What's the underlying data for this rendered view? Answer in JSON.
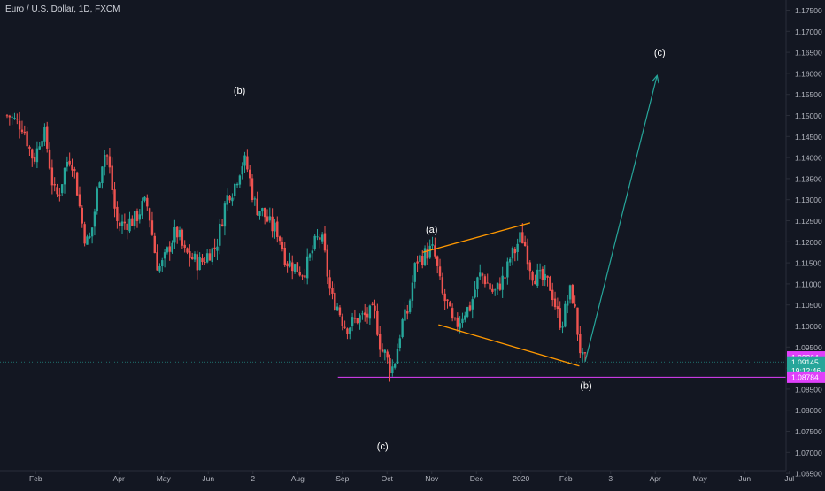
{
  "title": "Euro / U.S. Dollar, 1D, FXCM",
  "chart_data": {
    "type": "candlestick",
    "y_ticks": [
      "1.17500",
      "1.17000",
      "1.16500",
      "1.16000",
      "1.15500",
      "1.15000",
      "1.14500",
      "1.14000",
      "1.13500",
      "1.13000",
      "1.12500",
      "1.12000",
      "1.11500",
      "1.11000",
      "1.10500",
      "1.10000",
      "1.09500",
      "1.09000",
      "1.08500",
      "1.08000",
      "1.07500",
      "1.07000",
      "1.06500"
    ],
    "ylim": [
      1.062,
      1.178
    ],
    "x_ticks": [
      {
        "label": "Feb",
        "t": 0.6
      },
      {
        "label": "Apr",
        "t": 2.5
      },
      {
        "label": "May",
        "t": 3.5
      },
      {
        "label": "Jun",
        "t": 4.5
      },
      {
        "label": "2",
        "t": 5.5
      },
      {
        "label": "Aug",
        "t": 6.5
      },
      {
        "label": "Sep",
        "t": 7.5
      },
      {
        "label": "Oct",
        "t": 8.5
      },
      {
        "label": "Nov",
        "t": 9.5
      },
      {
        "label": "Dec",
        "t": 10.5
      },
      {
        "label": "2020",
        "t": 11.5
      },
      {
        "label": "Feb",
        "t": 12.5
      },
      {
        "label": "3",
        "t": 13.5
      },
      {
        "label": "Apr",
        "t": 14.5
      },
      {
        "label": "May",
        "t": 15.5
      },
      {
        "label": "Jun",
        "t": 16.5
      },
      {
        "label": "Jul",
        "t": 17.5
      }
    ],
    "xlim": [
      0,
      17.5
    ],
    "path_key_points": [
      {
        "t": 0.0,
        "price": 1.15
      },
      {
        "t": 0.3,
        "price": 1.148
      },
      {
        "t": 0.6,
        "price": 1.14
      },
      {
        "t": 0.8,
        "price": 1.146
      },
      {
        "t": 1.1,
        "price": 1.131
      },
      {
        "t": 1.4,
        "price": 1.14
      },
      {
        "t": 1.8,
        "price": 1.12
      },
      {
        "t": 2.2,
        "price": 1.141
      },
      {
        "t": 2.5,
        "price": 1.124
      },
      {
        "t": 2.8,
        "price": 1.125
      },
      {
        "t": 3.1,
        "price": 1.129
      },
      {
        "t": 3.4,
        "price": 1.114
      },
      {
        "t": 3.8,
        "price": 1.122
      },
      {
        "t": 4.0,
        "price": 1.117
      },
      {
        "t": 4.3,
        "price": 1.115
      },
      {
        "t": 4.6,
        "price": 1.118
      },
      {
        "t": 5.0,
        "price": 1.132
      },
      {
        "t": 5.3,
        "price": 1.139
      },
      {
        "t": 5.6,
        "price": 1.128
      },
      {
        "t": 6.0,
        "price": 1.123
      },
      {
        "t": 6.3,
        "price": 1.115
      },
      {
        "t": 6.6,
        "price": 1.113
      },
      {
        "t": 7.0,
        "price": 1.121
      },
      {
        "t": 7.3,
        "price": 1.106
      },
      {
        "t": 7.6,
        "price": 1.1
      },
      {
        "t": 7.9,
        "price": 1.102
      },
      {
        "t": 8.2,
        "price": 1.103
      },
      {
        "t": 8.4,
        "price": 1.094
      },
      {
        "t": 8.6,
        "price": 1.09
      },
      {
        "t": 8.9,
        "price": 1.102
      },
      {
        "t": 9.2,
        "price": 1.116
      },
      {
        "t": 9.5,
        "price": 1.118
      },
      {
        "t": 9.8,
        "price": 1.106
      },
      {
        "t": 10.0,
        "price": 1.1
      },
      {
        "t": 10.3,
        "price": 1.104
      },
      {
        "t": 10.6,
        "price": 1.112
      },
      {
        "t": 10.9,
        "price": 1.108
      },
      {
        "t": 11.1,
        "price": 1.111
      },
      {
        "t": 11.3,
        "price": 1.117
      },
      {
        "t": 11.5,
        "price": 1.121
      },
      {
        "t": 11.8,
        "price": 1.112
      },
      {
        "t": 12.1,
        "price": 1.11
      },
      {
        "t": 12.4,
        "price": 1.101
      },
      {
        "t": 12.6,
        "price": 1.108
      },
      {
        "t": 12.9,
        "price": 1.0915
      }
    ],
    "candle_count": 232,
    "candle_up_color": "#26a69a",
    "candle_down_color": "#ef5350",
    "horizontal_lines": [
      {
        "price": 1.09264,
        "t_start": 5.6,
        "color": "#e040fb"
      },
      {
        "price": 1.08784,
        "t_start": 7.4,
        "color": "#e040fb"
      }
    ],
    "current_price_line": {
      "price": 1.09145,
      "color": "#26a69a"
    },
    "trend_lines": [
      {
        "points": [
          {
            "t": 9.3,
            "price": 1.1175
          },
          {
            "t": 11.7,
            "price": 1.1245
          }
        ],
        "color": "#ff9800"
      },
      {
        "points": [
          {
            "t": 9.65,
            "price": 1.1003
          },
          {
            "t": 12.8,
            "price": 1.0905
          }
        ],
        "color": "#ff9800"
      }
    ],
    "projection_arrow": {
      "points": [
        {
          "t": 12.93,
          "price": 1.0915
        },
        {
          "t": 14.54,
          "price": 1.1595
        }
      ],
      "color": "#26a69a"
    },
    "wave_labels": [
      {
        "text": "(b)",
        "t": 5.2,
        "price": 1.156
      },
      {
        "text": "(a)",
        "t": 9.5,
        "price": 1.123
      },
      {
        "text": "(c)",
        "t": 14.6,
        "price": 1.165
      },
      {
        "text": "(b)",
        "t": 12.95,
        "price": 1.0859
      },
      {
        "text": "(c)",
        "t": 8.4,
        "price": 1.0715
      }
    ],
    "price_badges": [
      {
        "text": "1.09264",
        "price": 1.09264,
        "background": "#e040fb",
        "color": "#ffffff"
      },
      {
        "text": "1.09145",
        "price": 1.09145,
        "background": "#26a69a",
        "color": "#ffffff"
      },
      {
        "text": "19:12:46",
        "price": 1.0895,
        "background": "#26a69a",
        "color": "#ffffff"
      },
      {
        "text": "1.08784",
        "price": 1.08784,
        "background": "#e040fb",
        "color": "#ffffff"
      }
    ],
    "colors": {
      "background": "#131722",
      "axis_text": "#b2b5be",
      "label_text": "#ffffff",
      "axis_border": "#2a2e39"
    }
  }
}
